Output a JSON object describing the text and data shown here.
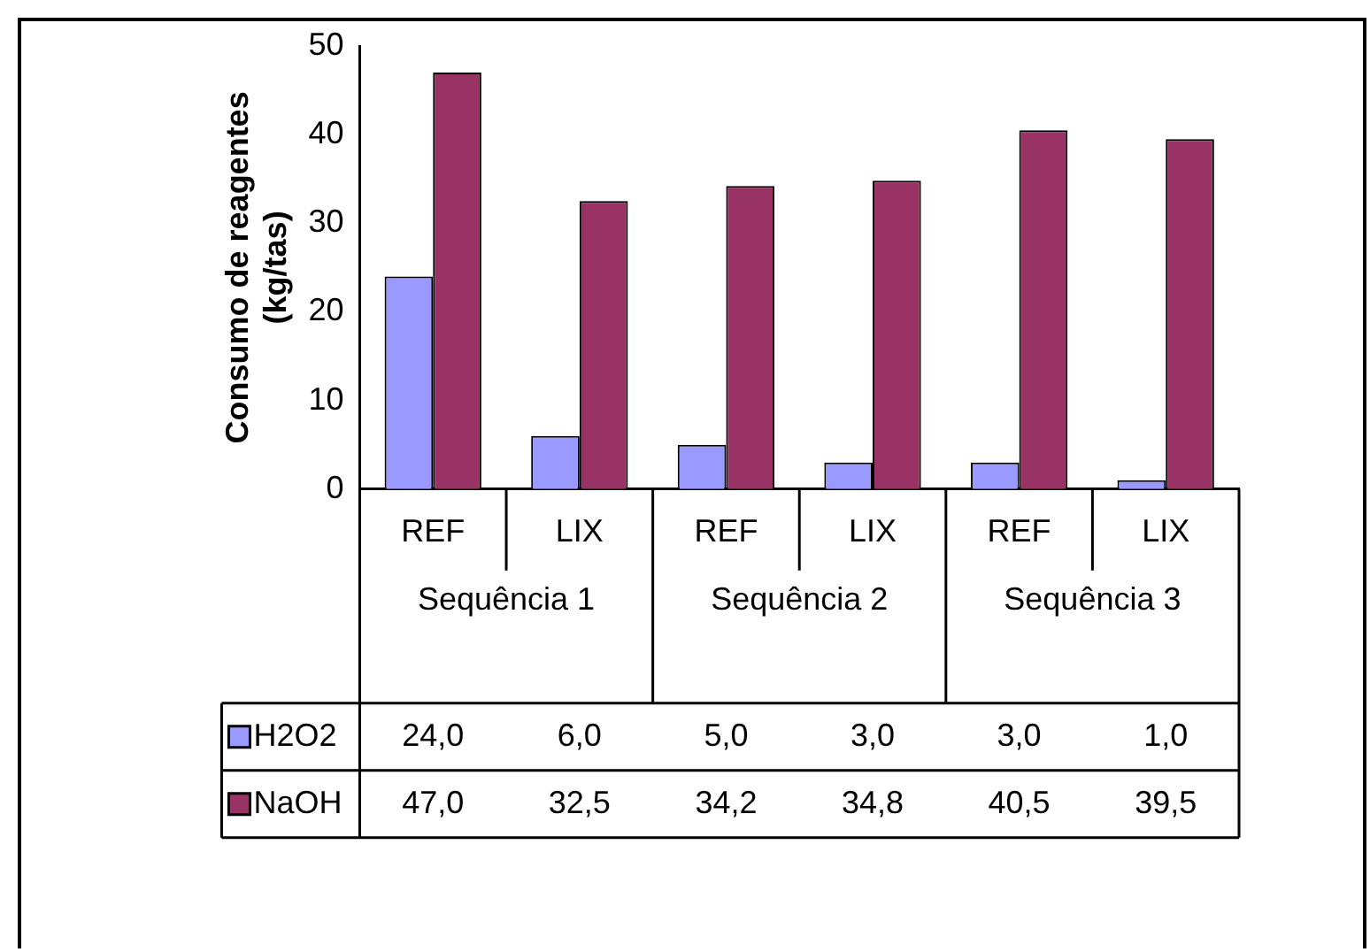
{
  "chart_data": {
    "type": "bar",
    "ylabel": "Consumo de reagentes (kg/tas)",
    "categories": [
      "REF",
      "LIX",
      "REF",
      "LIX",
      "REF",
      "LIX"
    ],
    "annotations": [
      "Sequência 1",
      "Sequência 2",
      "Sequência 3"
    ],
    "series": [
      {
        "name": "H2O2",
        "color": "#9999ff",
        "values": [
          24.0,
          6.0,
          5.0,
          3.0,
          3.0,
          1.0
        ],
        "value_labels": [
          "24,0",
          "6,0",
          "5,0",
          "3,0",
          "3,0",
          "1,0"
        ]
      },
      {
        "name": "NaOH",
        "color": "#993366",
        "values": [
          47.0,
          32.5,
          34.2,
          34.8,
          40.5,
          39.5
        ],
        "value_labels": [
          "47,0",
          "32,5",
          "34,2",
          "34,8",
          "40,5",
          "39,5"
        ]
      }
    ],
    "ylim": [
      0,
      50
    ],
    "yticks": [
      0,
      10,
      20,
      30,
      40,
      50
    ],
    "grid": false,
    "legend": "bottom"
  }
}
